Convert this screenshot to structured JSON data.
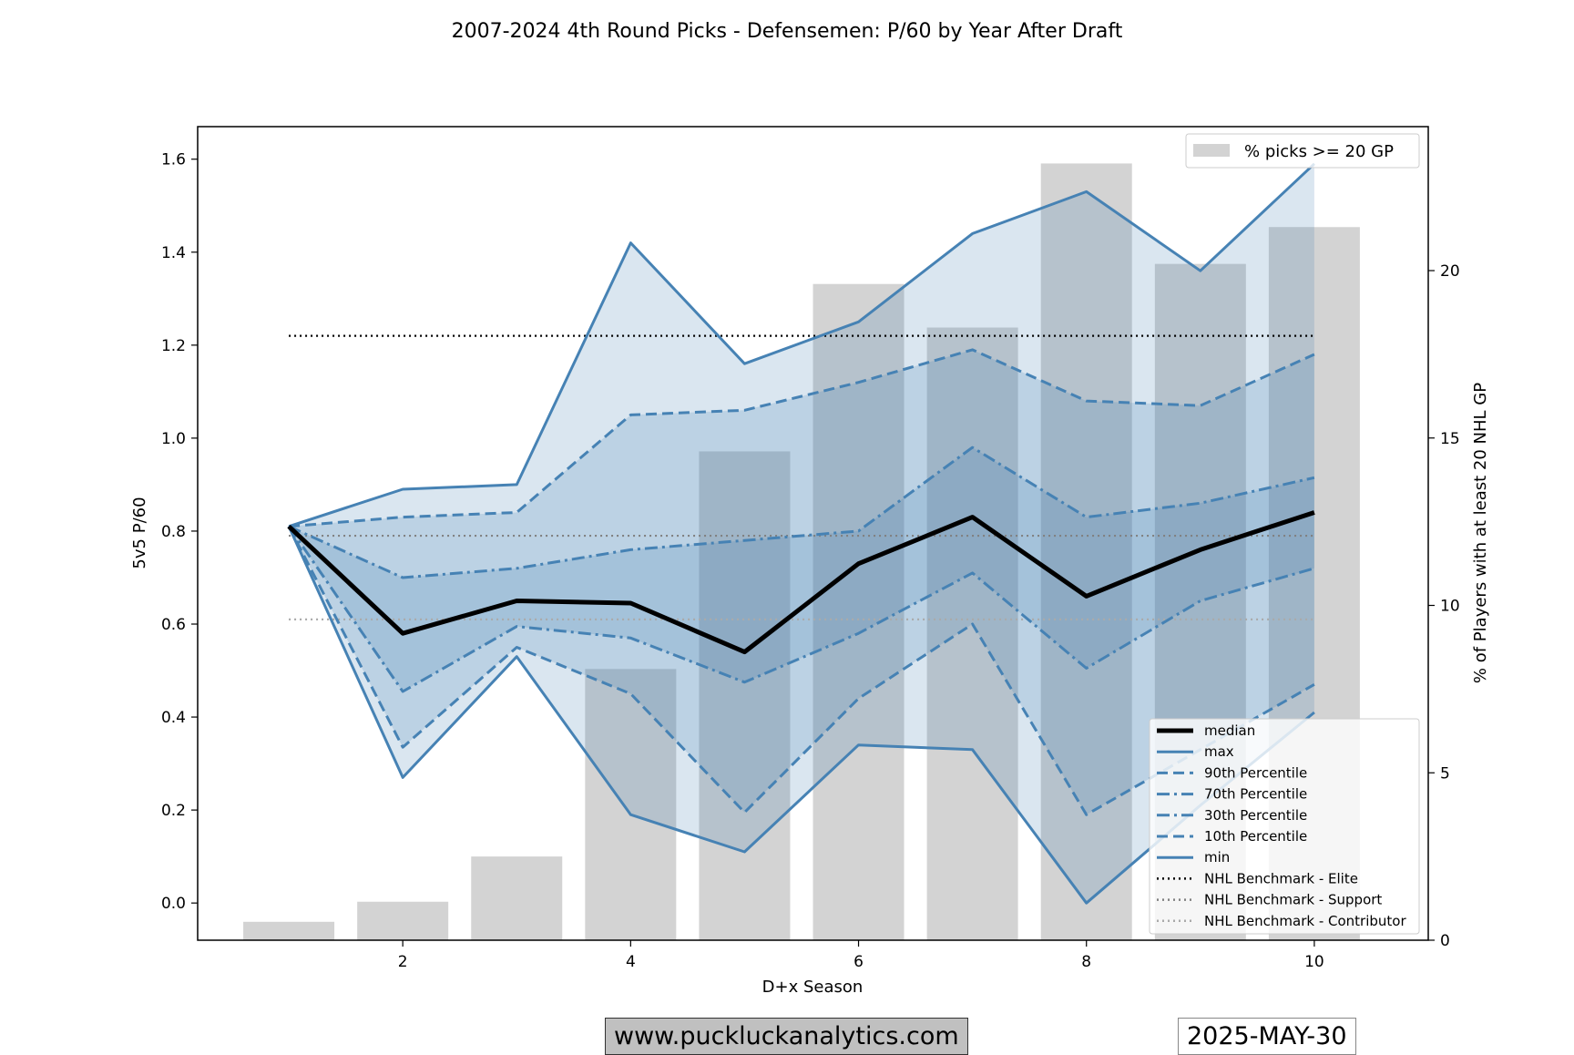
{
  "chart_data": {
    "type": "line",
    "title": "2007-2024 4th Round Picks - Defensemen: P/60 by Year After Draft",
    "xlabel": "D+x Season",
    "ylabel": "5v5 P/60",
    "y2label": "% of Players with at least 20 NHL GP",
    "xlim": [
      0.2,
      11.0
    ],
    "ylim": [
      -0.08,
      1.67
    ],
    "y2lim": [
      0,
      24.3
    ],
    "xticks": [
      2,
      4,
      6,
      8,
      10
    ],
    "yticks": [
      0.0,
      0.2,
      0.4,
      0.6,
      0.8,
      1.0,
      1.2,
      1.4,
      1.6
    ],
    "y2ticks": [
      0,
      5,
      10,
      15,
      20
    ],
    "x": [
      1,
      2,
      3,
      4,
      5,
      6,
      7,
      8,
      9,
      10
    ],
    "series": [
      {
        "name": "median",
        "style": "median",
        "values": [
          0.81,
          0.58,
          0.65,
          0.645,
          0.54,
          0.73,
          0.83,
          0.66,
          0.76,
          0.84
        ]
      },
      {
        "name": "max",
        "style": "solid",
        "values": [
          0.81,
          0.89,
          0.9,
          1.42,
          1.16,
          1.25,
          1.44,
          1.53,
          1.36,
          1.59
        ]
      },
      {
        "name": "90th Percentile",
        "style": "dashed",
        "values": [
          0.81,
          0.83,
          0.84,
          1.05,
          1.06,
          1.12,
          1.19,
          1.08,
          1.07,
          1.18
        ]
      },
      {
        "name": "70th Percentile",
        "style": "dashdot",
        "values": [
          0.81,
          0.7,
          0.72,
          0.76,
          0.78,
          0.8,
          0.98,
          0.83,
          0.86,
          0.915
        ]
      },
      {
        "name": "30th Percentile",
        "style": "dashdot",
        "values": [
          0.81,
          0.455,
          0.595,
          0.57,
          0.475,
          0.58,
          0.71,
          0.505,
          0.65,
          0.72
        ]
      },
      {
        "name": "10th Percentile",
        "style": "dashed",
        "values": [
          0.81,
          0.335,
          0.55,
          0.45,
          0.195,
          0.44,
          0.6,
          0.19,
          0.33,
          0.47
        ]
      },
      {
        "name": "min",
        "style": "solid",
        "values": [
          0.81,
          0.27,
          0.53,
          0.19,
          0.11,
          0.34,
          0.33,
          0.0,
          0.21,
          0.41
        ]
      }
    ],
    "benchmarks": [
      {
        "name": "NHL Benchmark - Elite",
        "value": 1.22,
        "color": "#000000"
      },
      {
        "name": "NHL Benchmark - Support",
        "value": 0.79,
        "color": "#808080"
      },
      {
        "name": "NHL Benchmark - Contributor",
        "value": 0.61,
        "color": "#aaaaaa"
      }
    ],
    "bars": {
      "name": "% picks >= 20 GP",
      "values": [
        0.55,
        1.15,
        2.5,
        8.1,
        14.6,
        19.6,
        18.3,
        23.2,
        20.2,
        21.3
      ]
    },
    "colors": {
      "band": "#4682b4",
      "bar": "#d3d3d3",
      "median": "#000000"
    }
  },
  "footer": {
    "website": "www.puckluckanalytics.com",
    "date": "2025-MAY-30"
  }
}
